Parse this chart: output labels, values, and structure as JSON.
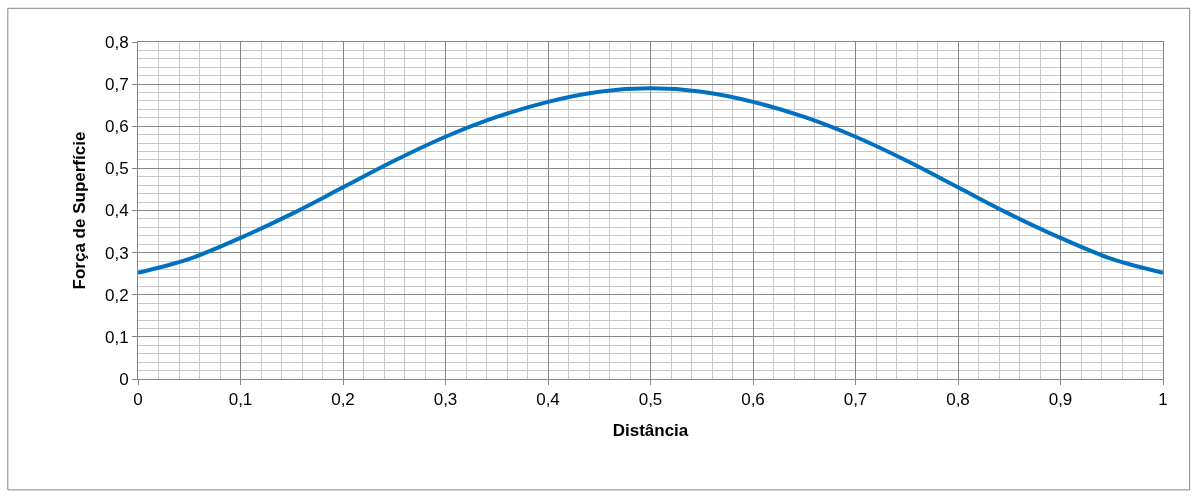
{
  "chart_data": {
    "type": "line",
    "xlabel": "Distância",
    "ylabel": "Força de Superfície",
    "x": [
      0,
      0.05,
      0.1,
      0.15,
      0.2,
      0.25,
      0.3,
      0.35,
      0.4,
      0.45,
      0.5,
      0.55,
      0.6,
      0.65,
      0.7,
      0.75,
      0.8,
      0.85,
      0.9,
      0.95,
      1
    ],
    "series": [
      {
        "color": "#0070c0",
        "values": [
          0.252,
          0.285,
          0.335,
          0.392,
          0.455,
          0.518,
          0.575,
          0.622,
          0.658,
          0.682,
          0.69,
          0.682,
          0.658,
          0.622,
          0.575,
          0.518,
          0.455,
          0.392,
          0.335,
          0.285,
          0.252
        ]
      }
    ],
    "xlim": [
      0,
      1
    ],
    "ylim": [
      0,
      0.8
    ],
    "xticks": [
      {
        "value": 0,
        "label": "0"
      },
      {
        "value": 0.1,
        "label": "0,1"
      },
      {
        "value": 0.2,
        "label": "0,2"
      },
      {
        "value": 0.3,
        "label": "0,3"
      },
      {
        "value": 0.4,
        "label": "0,4"
      },
      {
        "value": 0.5,
        "label": "0,5"
      },
      {
        "value": 0.6,
        "label": "0,6"
      },
      {
        "value": 0.7,
        "label": "0,7"
      },
      {
        "value": 0.8,
        "label": "0,8"
      },
      {
        "value": 0.9,
        "label": "0,9"
      },
      {
        "value": 1,
        "label": "1"
      }
    ],
    "yticks": [
      {
        "value": 0,
        "label": "0"
      },
      {
        "value": 0.1,
        "label": "0,1"
      },
      {
        "value": 0.2,
        "label": "0,2"
      },
      {
        "value": 0.3,
        "label": "0,3"
      },
      {
        "value": 0.4,
        "label": "0,4"
      },
      {
        "value": 0.5,
        "label": "0,5"
      },
      {
        "value": 0.6,
        "label": "0,6"
      },
      {
        "value": 0.7,
        "label": "0,7"
      },
      {
        "value": 0.8,
        "label": "0,8"
      }
    ],
    "grid": true,
    "marker": "none",
    "line_style": "solid"
  }
}
